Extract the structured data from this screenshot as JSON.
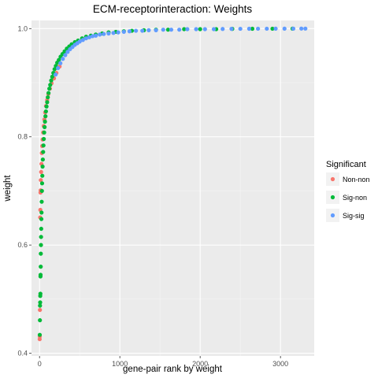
{
  "chart_data": {
    "type": "scatter",
    "title": "ECM-receptorinteraction: Weights",
    "xlabel": "gene-pair rank by weight",
    "ylabel": "weight",
    "xlim": [
      -100,
      3420
    ],
    "ylim": [
      0.395,
      1.015
    ],
    "xticks": [
      0,
      1000,
      2000,
      3000
    ],
    "xtick_labels": [
      "0",
      "1000",
      "2000",
      "3000"
    ],
    "yticks": [
      0.4,
      0.6,
      0.8,
      1.0
    ],
    "ytick_labels": [
      "0.4",
      "0.6",
      "0.8",
      "1.0"
    ],
    "grid": true,
    "legend": {
      "title": "Significant",
      "position": "right",
      "entries": [
        "Non-non",
        "Sig-non",
        "Sig-sig"
      ]
    },
    "series": [
      {
        "name": "Non-non",
        "color": "#F8766D",
        "x": [
          2,
          3,
          5,
          8,
          10,
          12,
          14,
          16,
          20,
          24,
          28,
          33,
          38,
          45,
          52,
          60,
          70,
          80,
          95,
          110,
          130,
          150,
          180,
          210,
          250
        ],
        "y": [
          0.426,
          0.431,
          0.48,
          0.651,
          0.665,
          0.697,
          0.701,
          0.72,
          0.735,
          0.75,
          0.77,
          0.783,
          0.795,
          0.808,
          0.82,
          0.832,
          0.845,
          0.857,
          0.868,
          0.879,
          0.889,
          0.899,
          0.908,
          0.918,
          0.93
        ]
      },
      {
        "name": "Sig-non",
        "color": "#00BA38",
        "x": [
          3,
          5,
          6,
          8,
          9,
          11,
          12,
          13,
          15,
          16,
          18,
          19,
          21,
          23,
          25,
          27,
          30,
          32,
          35,
          38,
          41,
          45,
          49,
          53,
          58,
          63,
          68,
          74,
          80,
          87,
          95,
          103,
          112,
          122,
          133,
          145,
          158,
          172,
          187,
          203,
          220,
          240,
          262,
          286,
          312,
          340,
          370,
          400,
          440,
          480,
          530,
          580,
          640,
          700,
          780,
          860,
          950,
          1050,
          1150,
          1300,
          1450,
          1600,
          1800,
          2000,
          2200,
          2400,
          2650,
          2900,
          3150
        ],
        "y": [
          0.434,
          0.461,
          0.488,
          0.494,
          0.506,
          0.51,
          0.542,
          0.545,
          0.56,
          0.584,
          0.6,
          0.615,
          0.63,
          0.648,
          0.66,
          0.68,
          0.7,
          0.714,
          0.728,
          0.745,
          0.758,
          0.772,
          0.784,
          0.796,
          0.808,
          0.818,
          0.828,
          0.838,
          0.847,
          0.856,
          0.864,
          0.873,
          0.881,
          0.889,
          0.896,
          0.904,
          0.911,
          0.918,
          0.925,
          0.931,
          0.937,
          0.942,
          0.948,
          0.953,
          0.958,
          0.963,
          0.967,
          0.971,
          0.975,
          0.978,
          0.982,
          0.985,
          0.987,
          0.989,
          0.991,
          0.993,
          0.994,
          0.995,
          0.996,
          0.997,
          0.998,
          0.998,
          0.999,
          0.999,
          0.999,
          0.9995,
          0.9997,
          0.9998,
          0.9999
        ]
      },
      {
        "name": "Sig-sig",
        "color": "#619CFF",
        "x": [
          200,
          230,
          260,
          290,
          320,
          350,
          380,
          410,
          440,
          470,
          500,
          540,
          580,
          620,
          660,
          700,
          750,
          800,
          860,
          920,
          980,
          1050,
          1120,
          1200,
          1280,
          1360,
          1450,
          1540,
          1640,
          1740,
          1840,
          1950,
          2060,
          2170,
          2280,
          2390,
          2500,
          2610,
          2720,
          2830,
          2940,
          3050,
          3160,
          3260,
          3310
        ],
        "y": [
          0.915,
          0.927,
          0.936,
          0.944,
          0.951,
          0.957,
          0.962,
          0.966,
          0.97,
          0.973,
          0.976,
          0.979,
          0.982,
          0.984,
          0.986,
          0.987,
          0.989,
          0.99,
          0.991,
          0.992,
          0.993,
          0.994,
          0.995,
          0.996,
          0.996,
          0.997,
          0.997,
          0.998,
          0.998,
          0.998,
          0.999,
          0.999,
          0.999,
          0.999,
          0.9993,
          0.9995,
          0.9996,
          0.9997,
          0.9998,
          0.9998,
          0.9999,
          0.9999,
          0.9999,
          1.0,
          1.0
        ]
      }
    ]
  }
}
